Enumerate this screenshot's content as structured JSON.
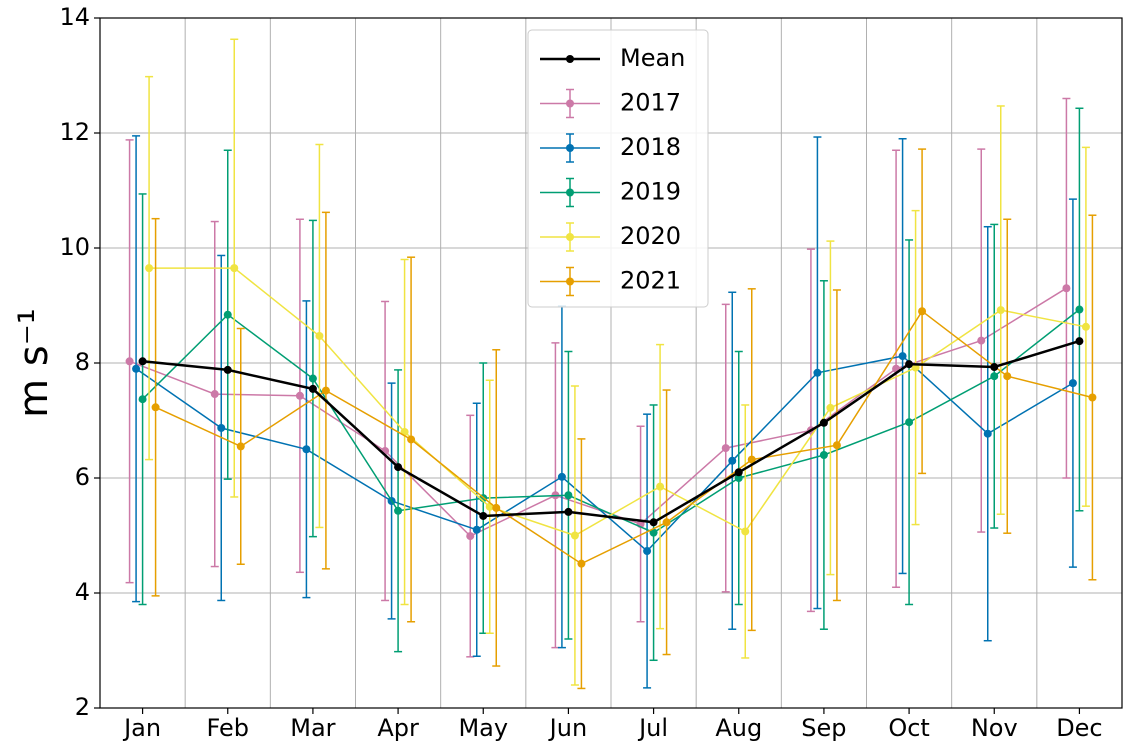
{
  "chart_data": {
    "type": "line",
    "ylabel": "m s⁻¹",
    "categories": [
      "Jan",
      "Feb",
      "Mar",
      "Apr",
      "May",
      "Jun",
      "Jul",
      "Aug",
      "Sep",
      "Oct",
      "Nov",
      "Dec"
    ],
    "ylim": [
      2,
      14
    ],
    "yticks": [
      2,
      4,
      6,
      8,
      10,
      12,
      14
    ],
    "grid": true,
    "legend": "upper center",
    "series": [
      {
        "name": "Mean",
        "color": "#000000",
        "values": [
          8.03,
          7.88,
          7.55,
          6.19,
          5.34,
          5.41,
          5.23,
          6.1,
          6.96,
          7.98,
          7.93,
          8.38
        ]
      },
      {
        "name": "2017",
        "color": "#cc79a7",
        "values": [
          8.03,
          7.46,
          7.43,
          6.47,
          4.99,
          5.7,
          5.2,
          6.52,
          6.83,
          7.9,
          8.39,
          9.3
        ],
        "errors": [
          3.85,
          3.0,
          3.07,
          2.6,
          2.1,
          2.65,
          1.7,
          2.5,
          3.15,
          3.8,
          3.33,
          3.3
        ]
      },
      {
        "name": "2018",
        "color": "#0072b2",
        "values": [
          7.9,
          6.87,
          6.5,
          5.6,
          5.1,
          6.02,
          4.73,
          6.3,
          7.83,
          8.12,
          6.77,
          7.65
        ],
        "errors": [
          4.05,
          3.0,
          2.58,
          2.05,
          2.2,
          2.97,
          2.38,
          2.93,
          4.1,
          3.78,
          3.6,
          3.2
        ]
      },
      {
        "name": "2019",
        "color": "#009e73",
        "values": [
          7.37,
          8.84,
          7.73,
          5.43,
          5.65,
          5.7,
          5.05,
          6.0,
          6.4,
          6.97,
          7.77,
          8.93
        ],
        "errors": [
          3.57,
          2.86,
          2.75,
          2.45,
          2.35,
          2.5,
          2.22,
          2.2,
          3.03,
          3.17,
          2.64,
          3.5
        ]
      },
      {
        "name": "2020",
        "color": "#f0e442",
        "values": [
          9.65,
          9.65,
          8.47,
          6.8,
          5.5,
          5.0,
          5.85,
          5.07,
          7.22,
          7.92,
          8.92,
          8.63
        ],
        "errors": [
          3.33,
          3.98,
          3.33,
          3.0,
          2.2,
          2.6,
          2.47,
          2.2,
          2.9,
          2.73,
          3.55,
          3.12
        ]
      },
      {
        "name": "2021",
        "color": "#e69f00",
        "values": [
          7.23,
          6.55,
          7.52,
          6.67,
          5.48,
          4.51,
          5.23,
          6.32,
          6.57,
          8.9,
          7.77,
          7.4
        ],
        "errors": [
          3.28,
          2.05,
          3.1,
          3.17,
          2.75,
          2.17,
          2.3,
          2.97,
          2.7,
          2.82,
          2.73,
          3.17
        ]
      }
    ]
  }
}
